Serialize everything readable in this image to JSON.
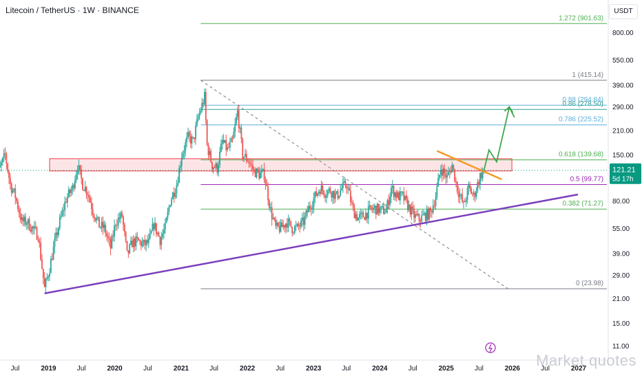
{
  "header": {
    "title": "Litecoin / TetherUS · 1W · BINANCE",
    "currency": "USDT",
    "watermark": "Market quotes"
  },
  "price_tag": {
    "value": "121.21",
    "countdown": "5d 17h"
  },
  "colors": {
    "bull": "#26a69a",
    "bear": "#ef5350",
    "trend_purple": "#7b3fbd",
    "fib_green": "#4caf50",
    "fib_teal": "#2e9e8f",
    "fib_purple": "#9c27b0",
    "fib_gray": "#787b86",
    "fib_blue": "#5aaedb",
    "orange": "#f59b23",
    "box_red": "#f23645",
    "arrow_green": "#3fa64b",
    "price_tag_bg": "#089981"
  },
  "chart_data": {
    "type": "candlestick",
    "symbol": "LTCUSDT",
    "timeframe": "1W",
    "y_scale": "log",
    "y_ticks": [
      11,
      15,
      21,
      29,
      39,
      55,
      80,
      110,
      150,
      210,
      290,
      390,
      550,
      800
    ],
    "y_tick_labels": [
      "11.00",
      "15.00",
      "21.00",
      "29.00",
      "39.00",
      "55.00",
      "80.00",
      "110.00",
      "150.00",
      "210.00",
      "290.00",
      "390.00",
      "550.00",
      "800.00"
    ],
    "x_ticks": [
      {
        "label": "Jul",
        "date": "2018-07-01"
      },
      {
        "label": "2019",
        "date": "2019-01-01"
      },
      {
        "label": "Jul",
        "date": "2019-07-01"
      },
      {
        "label": "2020",
        "date": "2020-01-01"
      },
      {
        "label": "Jul",
        "date": "2020-07-01"
      },
      {
        "label": "2021",
        "date": "2021-01-01"
      },
      {
        "label": "Jul",
        "date": "2021-07-01"
      },
      {
        "label": "2022",
        "date": "2022-01-01"
      },
      {
        "label": "Jul",
        "date": "2022-07-01"
      },
      {
        "label": "2023",
        "date": "2023-01-01"
      },
      {
        "label": "Jul",
        "date": "2023-07-01"
      },
      {
        "label": "2024",
        "date": "2024-01-01"
      },
      {
        "label": "Jul",
        "date": "2024-07-01"
      },
      {
        "label": "2025",
        "date": "2025-01-01"
      },
      {
        "label": "Jul",
        "date": "2025-07-01"
      },
      {
        "label": "2026",
        "date": "2026-01-01"
      },
      {
        "label": "Jul",
        "date": "2026-07-01"
      },
      {
        "label": "2027",
        "date": "2027-01-01"
      }
    ],
    "price_path": [
      [
        "2018-03-05",
        170
      ],
      [
        "2018-04-02",
        120
      ],
      [
        "2018-05-07",
        150
      ],
      [
        "2018-06-04",
        100
      ],
      [
        "2018-07-02",
        85
      ],
      [
        "2018-08-06",
        60
      ],
      [
        "2018-09-03",
        60
      ],
      [
        "2018-10-01",
        55
      ],
      [
        "2018-11-05",
        50
      ],
      [
        "2018-12-10",
        24
      ],
      [
        "2019-01-07",
        32
      ],
      [
        "2019-02-04",
        45
      ],
      [
        "2019-03-04",
        60
      ],
      [
        "2019-04-08",
        82
      ],
      [
        "2019-05-13",
        95
      ],
      [
        "2019-06-10",
        130
      ],
      [
        "2019-07-08",
        100
      ],
      [
        "2019-08-05",
        90
      ],
      [
        "2019-09-02",
        70
      ],
      [
        "2019-10-07",
        57
      ],
      [
        "2019-11-04",
        55
      ],
      [
        "2019-12-09",
        42
      ],
      [
        "2020-01-06",
        60
      ],
      [
        "2020-02-10",
        65
      ],
      [
        "2020-03-09",
        38
      ],
      [
        "2020-04-06",
        45
      ],
      [
        "2020-05-04",
        46
      ],
      [
        "2020-06-08",
        44
      ],
      [
        "2020-07-06",
        45
      ],
      [
        "2020-08-03",
        58
      ],
      [
        "2020-09-07",
        47
      ],
      [
        "2020-10-05",
        55
      ],
      [
        "2020-11-02",
        80
      ],
      [
        "2020-12-07",
        100
      ],
      [
        "2021-01-04",
        150
      ],
      [
        "2021-02-08",
        190
      ],
      [
        "2021-03-08",
        180
      ],
      [
        "2021-04-05",
        250
      ],
      [
        "2021-05-10",
        330
      ],
      [
        "2021-05-24",
        170
      ],
      [
        "2021-06-21",
        130
      ],
      [
        "2021-07-19",
        125
      ],
      [
        "2021-08-16",
        180
      ],
      [
        "2021-09-13",
        160
      ],
      [
        "2021-10-11",
        180
      ],
      [
        "2021-11-08",
        270
      ],
      [
        "2021-12-06",
        150
      ],
      [
        "2022-01-03",
        140
      ],
      [
        "2022-02-07",
        120
      ],
      [
        "2022-03-07",
        115
      ],
      [
        "2022-04-04",
        115
      ],
      [
        "2022-05-09",
        70
      ],
      [
        "2022-06-06",
        55
      ],
      [
        "2022-07-04",
        55
      ],
      [
        "2022-08-08",
        60
      ],
      [
        "2022-09-05",
        55
      ],
      [
        "2022-10-03",
        55
      ],
      [
        "2022-11-07",
        60
      ],
      [
        "2022-12-05",
        72
      ],
      [
        "2023-01-09",
        85
      ],
      [
        "2023-02-06",
        95
      ],
      [
        "2023-03-06",
        90
      ],
      [
        "2023-04-03",
        92
      ],
      [
        "2023-05-08",
        85
      ],
      [
        "2023-06-05",
        95
      ],
      [
        "2023-07-03",
        100
      ],
      [
        "2023-08-07",
        70
      ],
      [
        "2023-09-04",
        63
      ],
      [
        "2023-10-02",
        65
      ],
      [
        "2023-11-06",
        70
      ],
      [
        "2023-12-04",
        72
      ],
      [
        "2024-01-08",
        70
      ],
      [
        "2024-02-05",
        70
      ],
      [
        "2024-03-04",
        95
      ],
      [
        "2024-04-08",
        85
      ],
      [
        "2024-05-06",
        85
      ],
      [
        "2024-06-03",
        75
      ],
      [
        "2024-07-08",
        65
      ],
      [
        "2024-08-05",
        62
      ],
      [
        "2024-09-02",
        65
      ],
      [
        "2024-10-07",
        68
      ],
      [
        "2024-11-04",
        85
      ],
      [
        "2024-12-02",
        125
      ],
      [
        "2025-01-06",
        110
      ],
      [
        "2025-02-03",
        130
      ],
      [
        "2025-03-03",
        95
      ],
      [
        "2025-04-07",
        75
      ],
      [
        "2025-05-05",
        95
      ],
      [
        "2025-06-02",
        85
      ],
      [
        "2025-07-07",
        112
      ],
      [
        "2025-07-28",
        121.21
      ]
    ],
    "fib_levels": [
      {
        "ratio": "1.272",
        "price": 901.63,
        "label": "1.272 (901.63)",
        "color_key": "fib_green"
      },
      {
        "ratio": "1",
        "price": 415.14,
        "label": "1 (415.14)",
        "color_key": "fib_gray"
      },
      {
        "ratio": "0.88",
        "price": 294.84,
        "label": "0.88 (294.84)",
        "color_key": "fib_blue"
      },
      {
        "ratio": "0.86",
        "price": 278.5,
        "label": "0.86 (278.50)",
        "color_key": "fib_teal"
      },
      {
        "ratio": "0.786",
        "price": 225.52,
        "label": "0.786 (225.52)",
        "color_key": "fib_blue"
      },
      {
        "ratio": "0.618",
        "price": 139.68,
        "label": "0.618 (139.68)",
        "color_key": "fib_green"
      },
      {
        "ratio": "0.5",
        "price": 99.77,
        "label": "0.5 (99.77)",
        "color_key": "fib_purple"
      },
      {
        "ratio": "0.382",
        "price": 71.27,
        "label": "0.382 (71.27)",
        "color_key": "fib_green"
      },
      {
        "ratio": "0",
        "price": 23.98,
        "label": "0 (23.98)",
        "color_key": "fib_gray"
      }
    ],
    "fib_start_date": "2021-04-19",
    "resistance_zone": {
      "from_date": "2019-01-07",
      "to_date": "2025-12-29",
      "low": 120,
      "high": 142
    },
    "trendlines": [
      {
        "name": "rising-support",
        "color_key": "trend_purple",
        "from": [
          "2018-12-10",
          22.5
        ],
        "to": [
          "2026-12-28",
          87
        ]
      },
      {
        "name": "falling-dashed",
        "color_key": "fib_gray",
        "dashed": true,
        "from": [
          "2021-04-19",
          415
        ],
        "to": [
          "2025-12-08",
          23.98
        ]
      },
      {
        "name": "descending-resistance",
        "color_key": "orange",
        "from": [
          "2024-11-11",
          158
        ],
        "to": [
          "2025-11-03",
          107
        ]
      }
    ],
    "projection_path": [
      [
        "2025-07-28",
        121
      ],
      [
        "2025-08-25",
        160
      ],
      [
        "2025-10-06",
        136
      ],
      [
        "2025-12-15",
        288
      ],
      [
        "2026-01-12",
        250
      ]
    ]
  }
}
